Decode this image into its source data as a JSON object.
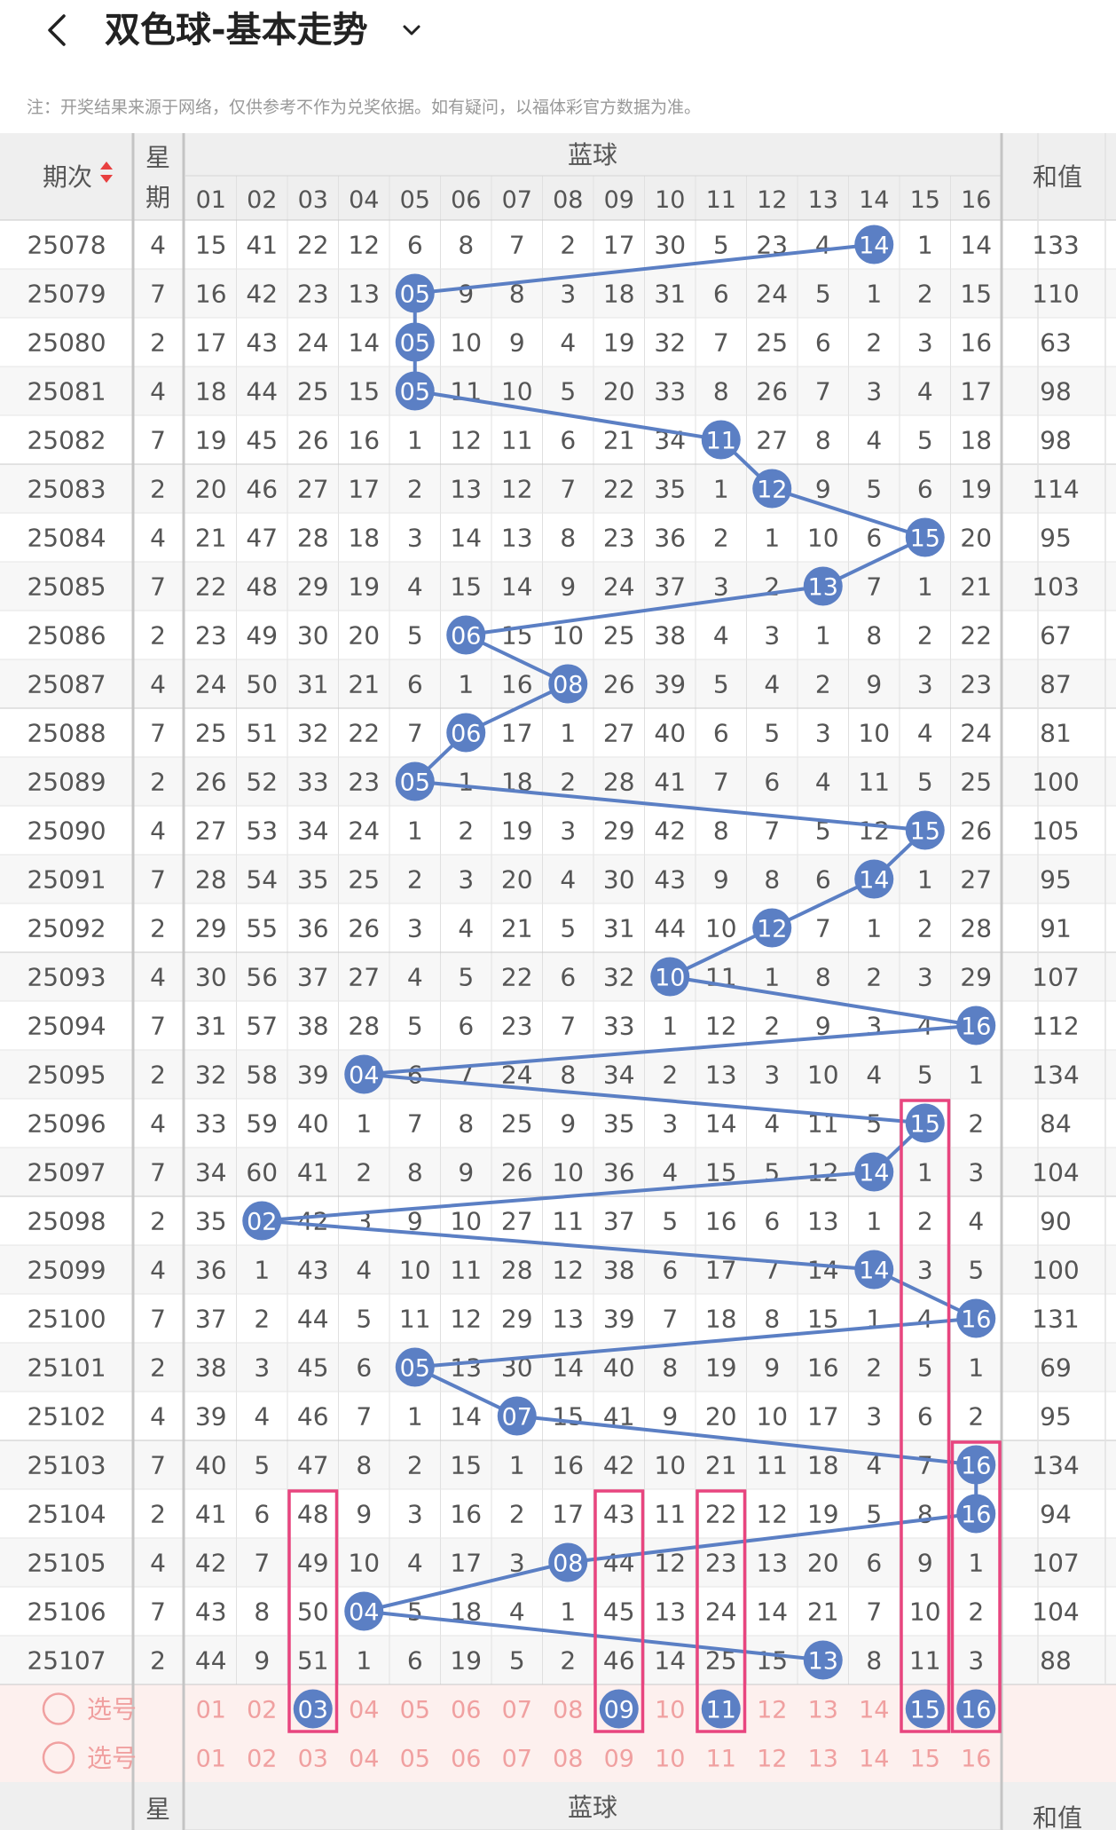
{
  "header": {
    "title": "双色球-基本走势"
  },
  "note": "注：开奖结果来源于网络，仅供参考不作为兑奖依据。如有疑问，以福体彩官方数据为准。",
  "table": {
    "col_period": "期次",
    "col_weekday": "星期",
    "col_blue": "蓝球",
    "col_sum": "和值",
    "balls": [
      "01",
      "02",
      "03",
      "04",
      "05",
      "06",
      "07",
      "08",
      "09",
      "10",
      "11",
      "12",
      "13",
      "14",
      "15",
      "16"
    ],
    "select_label": "选号",
    "selected_row1": [
      3,
      9,
      11,
      15,
      16
    ]
  },
  "colors": {
    "ball": "#5b7fc4",
    "accent": "#e8457f",
    "selbg": "#fdf0ee",
    "seltext": "#f0a0a0"
  },
  "rows": [
    {
      "period": "25078",
      "weekday": "4",
      "cells": [
        15,
        41,
        22,
        12,
        6,
        8,
        7,
        2,
        17,
        30,
        5,
        23,
        4,
        14,
        1,
        14
      ],
      "blue": 14,
      "sum": "133"
    },
    {
      "period": "25079",
      "weekday": "7",
      "cells": [
        16,
        42,
        23,
        13,
        5,
        9,
        8,
        3,
        18,
        31,
        6,
        24,
        5,
        1,
        2,
        15
      ],
      "blue": 5,
      "sum": "110"
    },
    {
      "period": "25080",
      "weekday": "2",
      "cells": [
        17,
        43,
        24,
        14,
        5,
        10,
        9,
        4,
        19,
        32,
        7,
        25,
        6,
        2,
        3,
        16
      ],
      "blue": 5,
      "sum": "63"
    },
    {
      "period": "25081",
      "weekday": "4",
      "cells": [
        18,
        44,
        25,
        15,
        5,
        11,
        10,
        5,
        20,
        33,
        8,
        26,
        7,
        3,
        4,
        17
      ],
      "blue": 5,
      "sum": "98"
    },
    {
      "period": "25082",
      "weekday": "7",
      "cells": [
        19,
        45,
        26,
        16,
        1,
        12,
        11,
        6,
        21,
        34,
        11,
        27,
        8,
        4,
        5,
        18
      ],
      "blue": 11,
      "sum": "98"
    },
    {
      "period": "25083",
      "weekday": "2",
      "cells": [
        20,
        46,
        27,
        17,
        2,
        13,
        12,
        7,
        22,
        35,
        1,
        12,
        9,
        5,
        6,
        19
      ],
      "blue": 12,
      "sum": "114"
    },
    {
      "period": "25084",
      "weekday": "4",
      "cells": [
        21,
        47,
        28,
        18,
        3,
        14,
        13,
        8,
        23,
        36,
        2,
        1,
        10,
        6,
        15,
        20
      ],
      "blue": 15,
      "sum": "95"
    },
    {
      "period": "25085",
      "weekday": "7",
      "cells": [
        22,
        48,
        29,
        19,
        4,
        15,
        14,
        9,
        24,
        37,
        3,
        2,
        13,
        7,
        1,
        21
      ],
      "blue": 13,
      "sum": "103"
    },
    {
      "period": "25086",
      "weekday": "2",
      "cells": [
        23,
        49,
        30,
        20,
        5,
        6,
        15,
        10,
        25,
        38,
        4,
        3,
        1,
        8,
        2,
        22
      ],
      "blue": 6,
      "sum": "67"
    },
    {
      "period": "25087",
      "weekday": "4",
      "cells": [
        24,
        50,
        31,
        21,
        6,
        1,
        16,
        8,
        26,
        39,
        5,
        4,
        2,
        9,
        3,
        23
      ],
      "blue": 8,
      "sum": "87"
    },
    {
      "period": "25088",
      "weekday": "7",
      "cells": [
        25,
        51,
        32,
        22,
        7,
        6,
        17,
        1,
        27,
        40,
        6,
        5,
        3,
        10,
        4,
        24
      ],
      "blue": 6,
      "sum": "81"
    },
    {
      "period": "25089",
      "weekday": "2",
      "cells": [
        26,
        52,
        33,
        23,
        5,
        1,
        18,
        2,
        28,
        41,
        7,
        6,
        4,
        11,
        5,
        25
      ],
      "blue": 5,
      "sum": "100"
    },
    {
      "period": "25090",
      "weekday": "4",
      "cells": [
        27,
        53,
        34,
        24,
        1,
        2,
        19,
        3,
        29,
        42,
        8,
        7,
        5,
        12,
        15,
        26
      ],
      "blue": 15,
      "sum": "105"
    },
    {
      "period": "25091",
      "weekday": "7",
      "cells": [
        28,
        54,
        35,
        25,
        2,
        3,
        20,
        4,
        30,
        43,
        9,
        8,
        6,
        14,
        1,
        27
      ],
      "blue": 14,
      "sum": "95"
    },
    {
      "period": "25092",
      "weekday": "2",
      "cells": [
        29,
        55,
        36,
        26,
        3,
        4,
        21,
        5,
        31,
        44,
        10,
        12,
        7,
        1,
        2,
        28
      ],
      "blue": 12,
      "sum": "91"
    },
    {
      "period": "25093",
      "weekday": "4",
      "cells": [
        30,
        56,
        37,
        27,
        4,
        5,
        22,
        6,
        32,
        10,
        11,
        1,
        8,
        2,
        3,
        29
      ],
      "blue": 10,
      "sum": "107"
    },
    {
      "period": "25094",
      "weekday": "7",
      "cells": [
        31,
        57,
        38,
        28,
        5,
        6,
        23,
        7,
        33,
        1,
        12,
        2,
        9,
        3,
        4,
        16
      ],
      "blue": 16,
      "sum": "112"
    },
    {
      "period": "25095",
      "weekday": "2",
      "cells": [
        32,
        58,
        39,
        4,
        6,
        7,
        24,
        8,
        34,
        2,
        13,
        3,
        10,
        4,
        5,
        1
      ],
      "blue": 4,
      "sum": "134"
    },
    {
      "period": "25096",
      "weekday": "4",
      "cells": [
        33,
        59,
        40,
        1,
        7,
        8,
        25,
        9,
        35,
        3,
        14,
        4,
        11,
        5,
        15,
        2
      ],
      "blue": 15,
      "sum": "84"
    },
    {
      "period": "25097",
      "weekday": "7",
      "cells": [
        34,
        60,
        41,
        2,
        8,
        9,
        26,
        10,
        36,
        4,
        15,
        5,
        12,
        14,
        1,
        3
      ],
      "blue": 14,
      "sum": "104"
    },
    {
      "period": "25098",
      "weekday": "2",
      "cells": [
        35,
        2,
        42,
        3,
        9,
        10,
        27,
        11,
        37,
        5,
        16,
        6,
        13,
        1,
        2,
        4
      ],
      "blue": 2,
      "sum": "90"
    },
    {
      "period": "25099",
      "weekday": "4",
      "cells": [
        36,
        1,
        43,
        4,
        10,
        11,
        28,
        12,
        38,
        6,
        17,
        7,
        14,
        14,
        3,
        5
      ],
      "blue": 14,
      "sum": "100"
    },
    {
      "period": "25100",
      "weekday": "7",
      "cells": [
        37,
        2,
        44,
        5,
        11,
        12,
        29,
        13,
        39,
        7,
        18,
        8,
        15,
        1,
        4,
        16
      ],
      "blue": 16,
      "sum": "131"
    },
    {
      "period": "25101",
      "weekday": "2",
      "cells": [
        38,
        3,
        45,
        6,
        5,
        13,
        30,
        14,
        40,
        8,
        19,
        9,
        16,
        2,
        5,
        1
      ],
      "blue": 5,
      "sum": "69"
    },
    {
      "period": "25102",
      "weekday": "4",
      "cells": [
        39,
        4,
        46,
        7,
        1,
        14,
        7,
        15,
        41,
        9,
        20,
        10,
        17,
        3,
        6,
        2
      ],
      "blue": 7,
      "sum": "95"
    },
    {
      "period": "25103",
      "weekday": "7",
      "cells": [
        40,
        5,
        47,
        8,
        2,
        15,
        1,
        16,
        42,
        10,
        21,
        11,
        18,
        4,
        7,
        16
      ],
      "blue": 16,
      "sum": "134"
    },
    {
      "period": "25104",
      "weekday": "2",
      "cells": [
        41,
        6,
        48,
        9,
        3,
        16,
        2,
        17,
        43,
        11,
        22,
        12,
        19,
        5,
        8,
        16
      ],
      "blue": 16,
      "sum": "94"
    },
    {
      "period": "25105",
      "weekday": "4",
      "cells": [
        42,
        7,
        49,
        10,
        4,
        17,
        3,
        8,
        44,
        12,
        23,
        13,
        20,
        6,
        9,
        1
      ],
      "blue": 8,
      "sum": "107"
    },
    {
      "period": "25106",
      "weekday": "7",
      "cells": [
        43,
        8,
        50,
        4,
        5,
        18,
        4,
        1,
        45,
        13,
        24,
        14,
        21,
        7,
        10,
        2
      ],
      "blue": 4,
      "sum": "104"
    },
    {
      "period": "25107",
      "weekday": "2",
      "cells": [
        44,
        9,
        51,
        1,
        6,
        19,
        5,
        2,
        46,
        14,
        25,
        15,
        13,
        8,
        11,
        3
      ],
      "blue": 13,
      "sum": "88"
    }
  ]
}
